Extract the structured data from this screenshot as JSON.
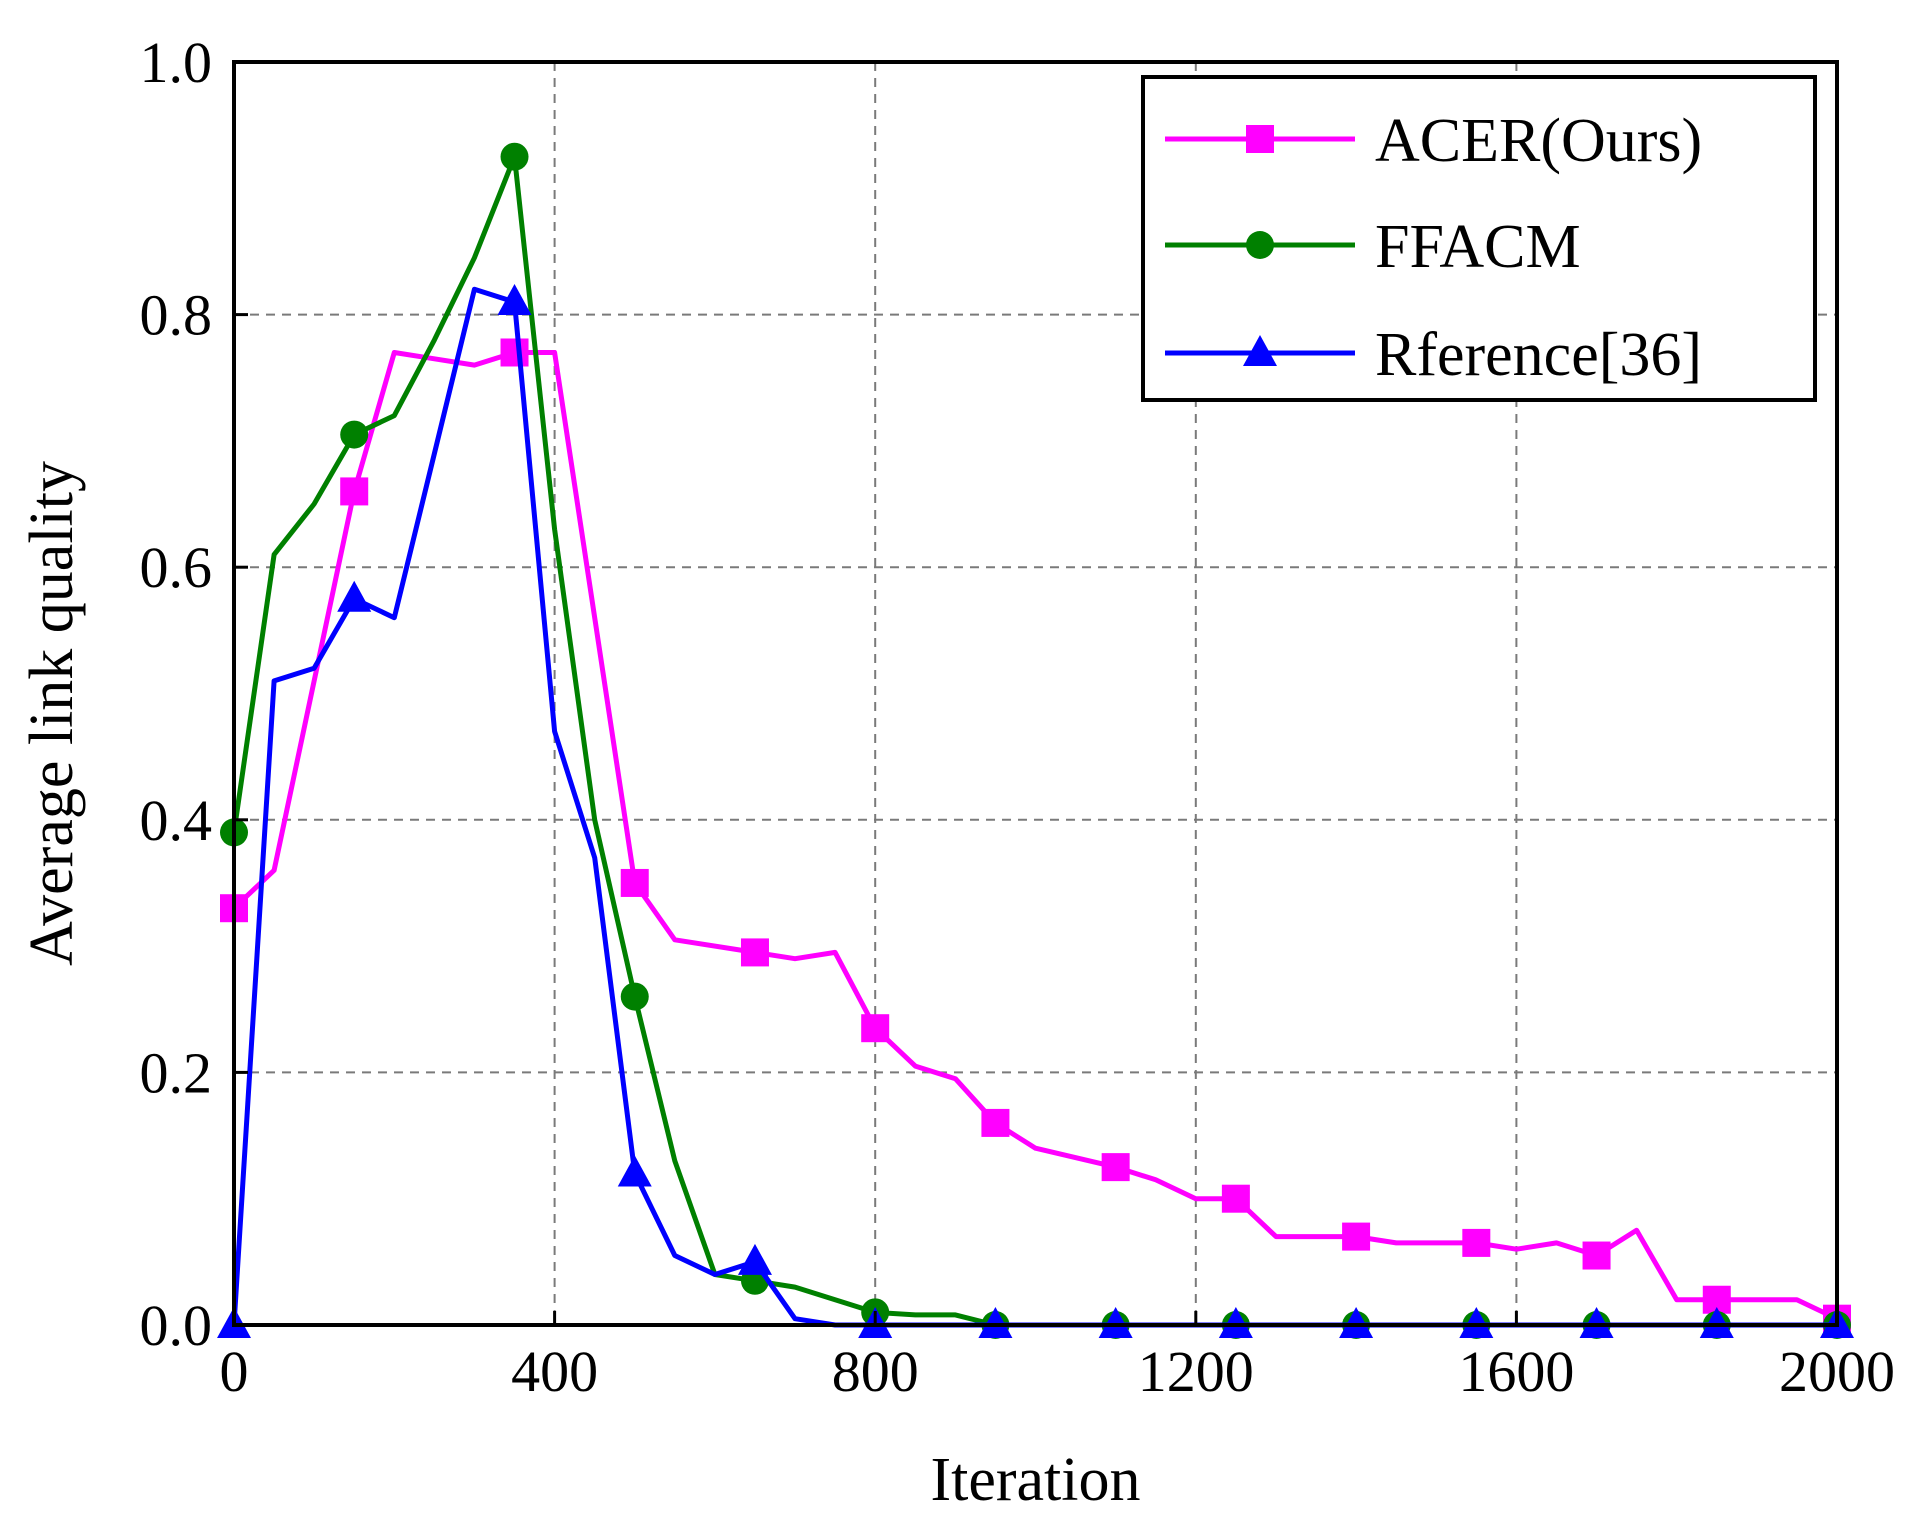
{
  "chart_data": {
    "type": "line",
    "title": "",
    "xlabel": "Iteration",
    "ylabel": "Average link quality",
    "xlim": [
      0,
      2000
    ],
    "ylim": [
      0.0,
      1.0
    ],
    "grid": true,
    "legend_position": "top-right",
    "x_ticks": [
      "0",
      "400",
      "800",
      "1200",
      "1600",
      "2000"
    ],
    "y_ticks": [
      "0.0",
      "0.2",
      "0.4",
      "0.6",
      "0.8",
      "1.0"
    ],
    "series": [
      {
        "name": "ACER(Ours)",
        "color": "#ff00ff",
        "marker": "square",
        "x": [
          0,
          50,
          150,
          200,
          250,
          300,
          350,
          400,
          500,
          550,
          650,
          700,
          750,
          800,
          850,
          900,
          950,
          1000,
          1100,
          1150,
          1200,
          1250,
          1300,
          1400,
          1450,
          1550,
          1600,
          1650,
          1700,
          1750,
          1800,
          1850,
          1950,
          2000
        ],
        "y": [
          0.33,
          0.36,
          0.66,
          0.77,
          0.765,
          0.76,
          0.77,
          0.77,
          0.35,
          0.305,
          0.295,
          0.29,
          0.295,
          0.235,
          0.205,
          0.195,
          0.16,
          0.14,
          0.125,
          0.115,
          0.1,
          0.1,
          0.07,
          0.07,
          0.065,
          0.065,
          0.06,
          0.065,
          0.055,
          0.075,
          0.02,
          0.02,
          0.02,
          0.005
        ],
        "marker_x": [
          0,
          150,
          350,
          500,
          650,
          800,
          950,
          1100,
          1250,
          1400,
          1550,
          1700,
          1850,
          2000
        ],
        "marker_y": [
          0.33,
          0.66,
          0.77,
          0.35,
          0.295,
          0.235,
          0.16,
          0.125,
          0.1,
          0.07,
          0.065,
          0.055,
          0.02,
          0.005
        ]
      },
      {
        "name": "FFACM",
        "color": "#008000",
        "marker": "circle",
        "x": [
          0,
          50,
          100,
          150,
          200,
          250,
          300,
          350,
          400,
          450,
          500,
          550,
          600,
          650,
          700,
          750,
          800,
          850,
          900,
          950,
          1100,
          1250,
          1400,
          1550,
          1700,
          1850,
          2000
        ],
        "y": [
          0.39,
          0.61,
          0.65,
          0.705,
          0.72,
          0.78,
          0.845,
          0.925,
          0.63,
          0.4,
          0.26,
          0.13,
          0.04,
          0.035,
          0.03,
          0.02,
          0.01,
          0.008,
          0.008,
          0.0,
          0.0,
          0.0,
          0.0,
          0.0,
          0.0,
          0.0,
          0.0
        ],
        "marker_x": [
          0,
          150,
          350,
          500,
          650,
          800,
          950,
          1100,
          1250,
          1400,
          1550,
          1700,
          1850,
          2000
        ],
        "marker_y": [
          0.39,
          0.705,
          0.925,
          0.26,
          0.035,
          0.01,
          0.0,
          0.0,
          0.0,
          0.0,
          0.0,
          0.0,
          0.0,
          0.0
        ]
      },
      {
        "name": "Rference[36]",
        "color": "#0000ff",
        "marker": "triangle",
        "x": [
          0,
          50,
          100,
          150,
          200,
          250,
          300,
          350,
          400,
          450,
          500,
          550,
          600,
          650,
          700,
          750,
          800,
          950,
          1100,
          1250,
          1400,
          1550,
          1700,
          1850,
          2000
        ],
        "y": [
          0.0,
          0.51,
          0.52,
          0.575,
          0.56,
          0.69,
          0.82,
          0.81,
          0.47,
          0.37,
          0.12,
          0.055,
          0.04,
          0.05,
          0.005,
          0.0,
          0.0,
          0.0,
          0.0,
          0.0,
          0.0,
          0.0,
          0.0,
          0.0,
          0.0
        ],
        "marker_x": [
          0,
          150,
          350,
          500,
          650,
          800,
          950,
          1100,
          1250,
          1400,
          1550,
          1700,
          1850,
          2000
        ],
        "marker_y": [
          0.0,
          0.575,
          0.81,
          0.12,
          0.05,
          0.0,
          0.0,
          0.0,
          0.0,
          0.0,
          0.0,
          0.0,
          0.0,
          0.0
        ]
      }
    ]
  }
}
